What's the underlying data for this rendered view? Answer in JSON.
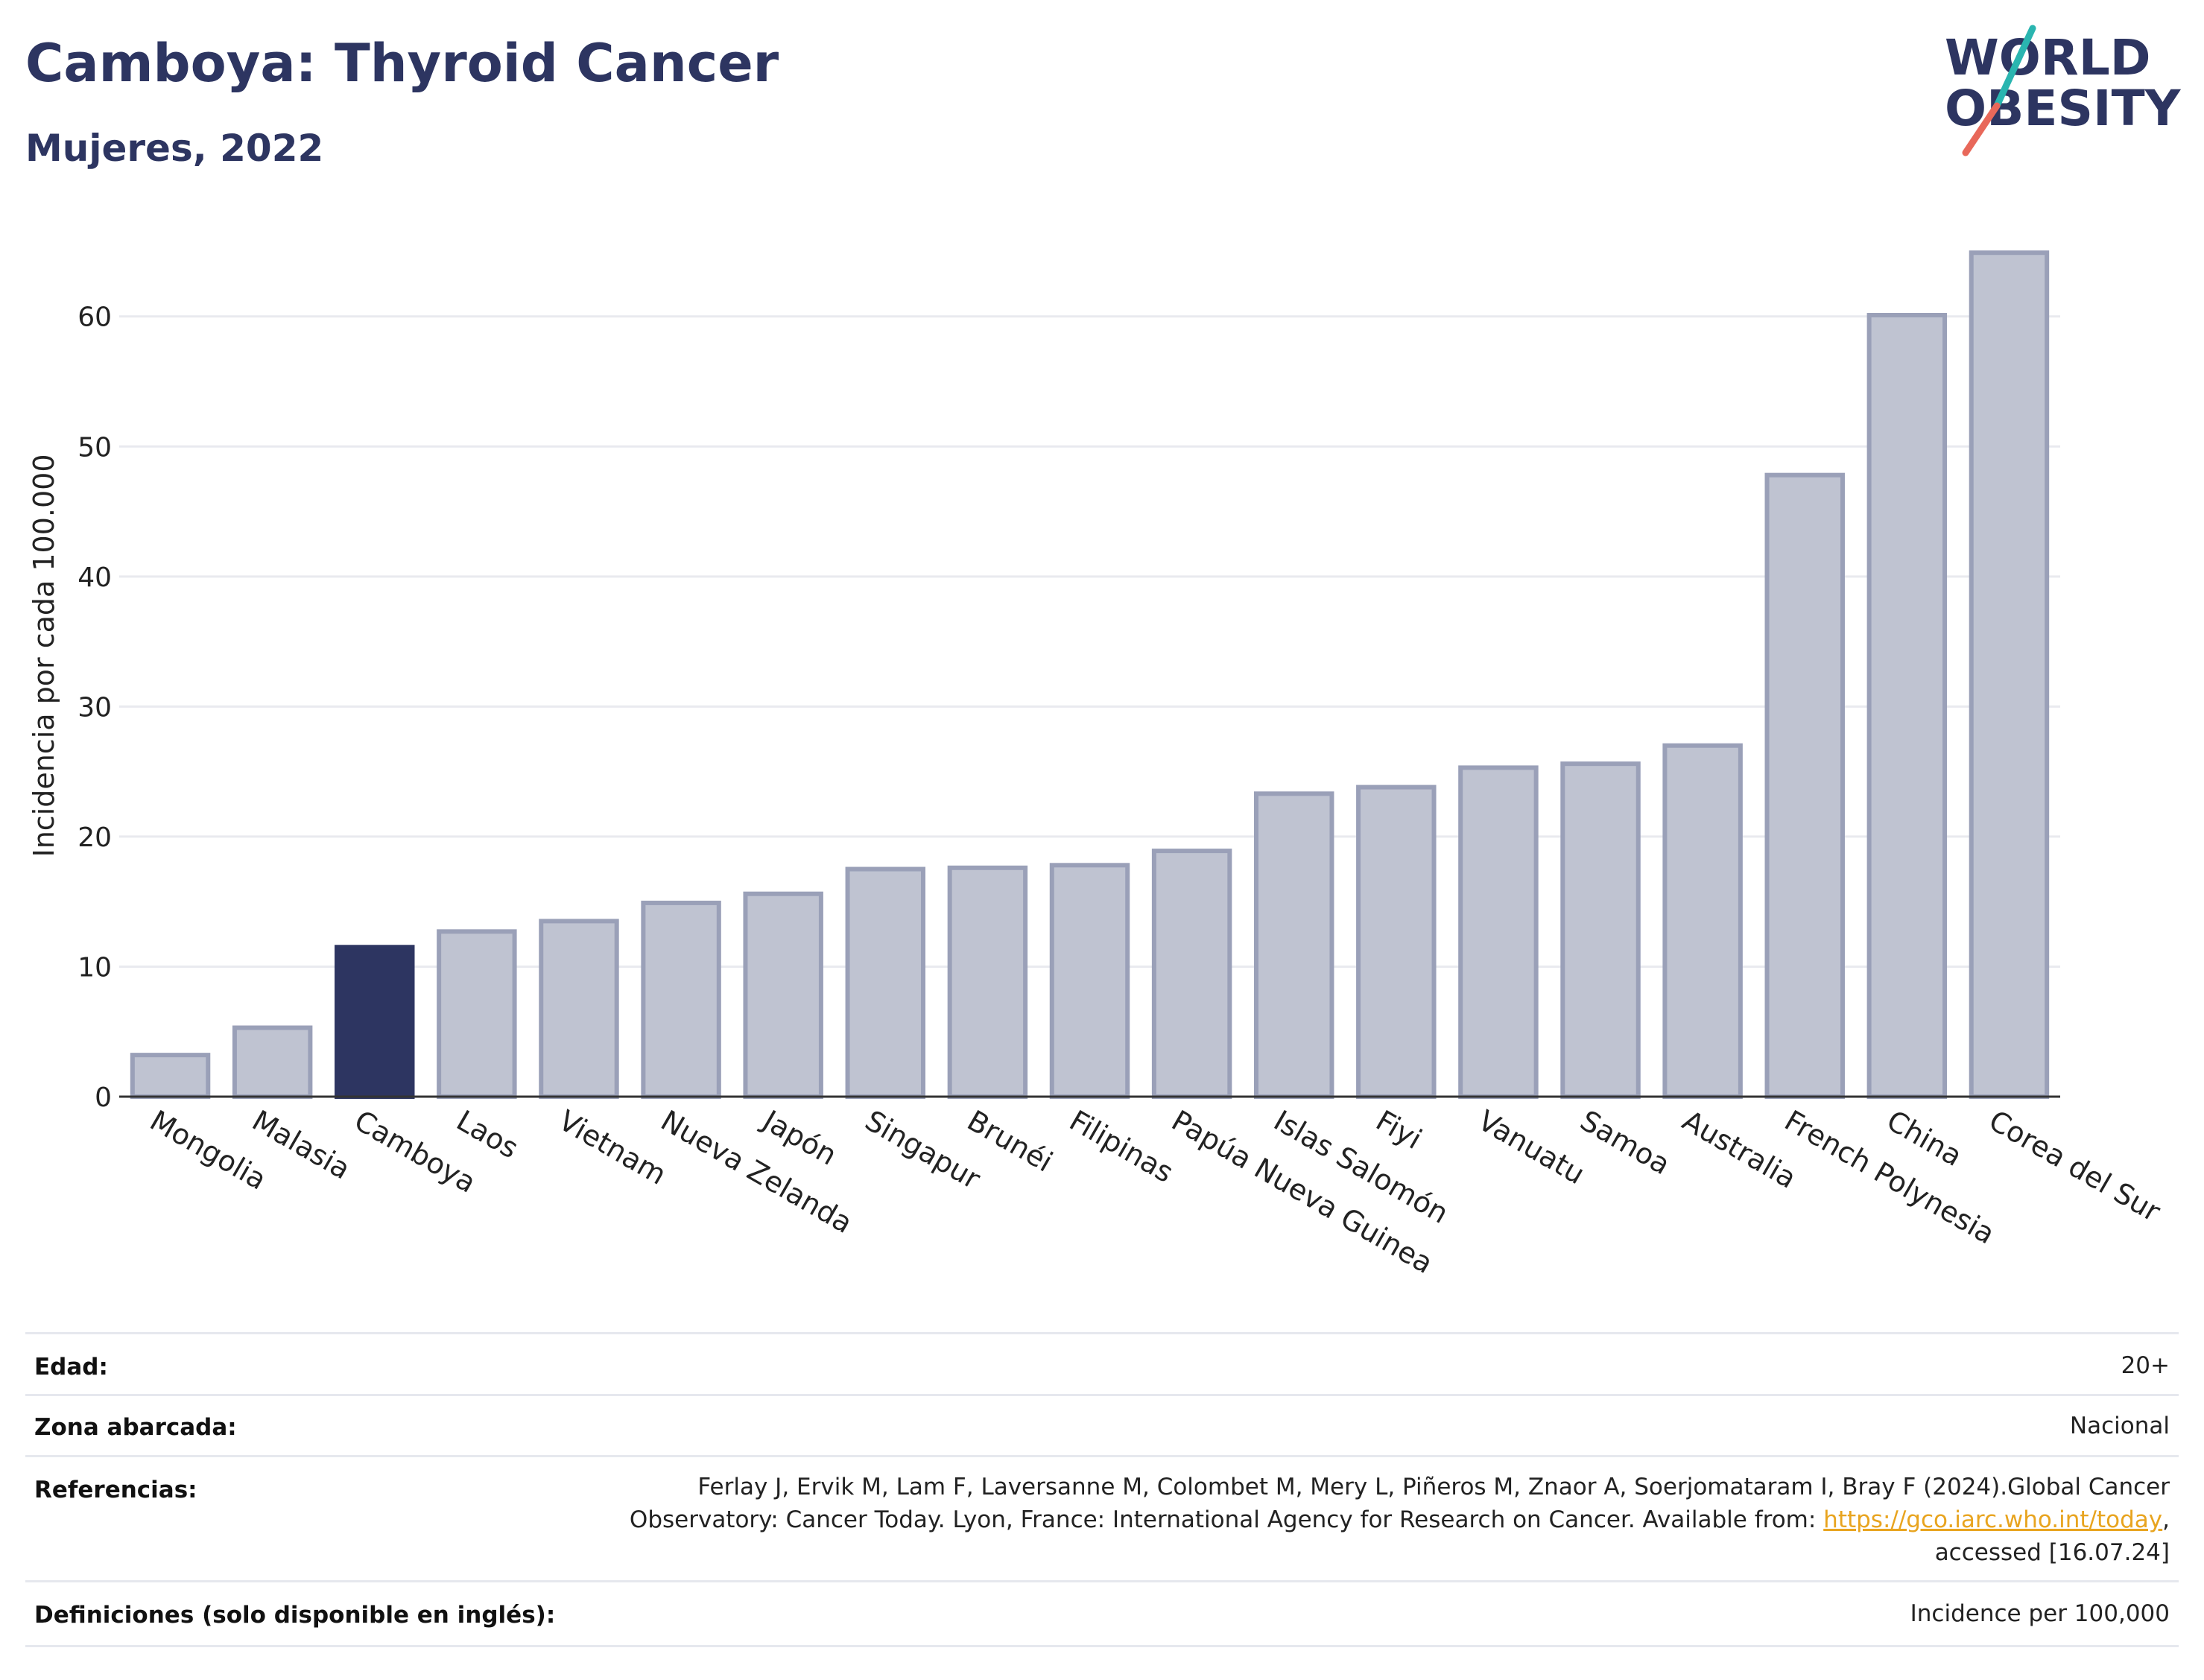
{
  "header": {
    "title": "Camboya: Thyroid Cancer",
    "subtitle": "Mujeres, 2022",
    "logo_line1": "WORLD",
    "logo_line2": "OBESITY"
  },
  "chart_data": {
    "type": "bar",
    "title": "Camboya: Thyroid Cancer",
    "subtitle": "Mujeres, 2022",
    "ylabel": "Incidencia por cada 100.000",
    "xlabel": "",
    "ylim": [
      0,
      66
    ],
    "yticks": [
      0,
      10,
      20,
      30,
      40,
      50,
      60
    ],
    "grid": true,
    "highlight": "Camboya",
    "categories": [
      "Mongolia",
      "Malasia",
      "Camboya",
      "Laos",
      "Vietnam",
      "Nueva Zelanda",
      "Japón",
      "Singapur",
      "Brunéi",
      "Filipinas",
      "Papúa Nueva Guinea",
      "Islas Salomón",
      "Fiyi",
      "Vanuatu",
      "Samoa",
      "Australia",
      "French Polynesia",
      "China",
      "Corea del Sur"
    ],
    "values": [
      3.2,
      5.3,
      11.5,
      12.7,
      13.5,
      14.9,
      15.6,
      17.5,
      17.6,
      17.8,
      18.9,
      23.3,
      23.8,
      25.3,
      25.6,
      27.0,
      47.8,
      60.1,
      64.9
    ],
    "colors": {
      "bar": "#bfc3d1",
      "bar_border": "#9aa0b8",
      "highlight": "#2d3561"
    }
  },
  "metadata": {
    "age": {
      "label": "Edad:",
      "value": "20+"
    },
    "area": {
      "label": "Zona abarcada:",
      "value": "Nacional"
    },
    "references": {
      "label": "Referencias:",
      "line1": "Ferlay J, Ervik M, Lam F, Laversanne M, Colombet M, Mery L, Piñeros M, Znaor A, Soerjomataram I, Bray F (2024).Global Cancer",
      "line2_prefix": "Observatory: Cancer Today. Lyon, France: International Agency for Research on Cancer. Available from: ",
      "link": "https://gco.iarc.who.int/today",
      "line2_suffix": ",",
      "line3": "accessed [16.07.24]"
    },
    "definitions": {
      "label": "Definiciones (solo disponible en inglés):",
      "value": "Incidence per 100,000"
    }
  }
}
